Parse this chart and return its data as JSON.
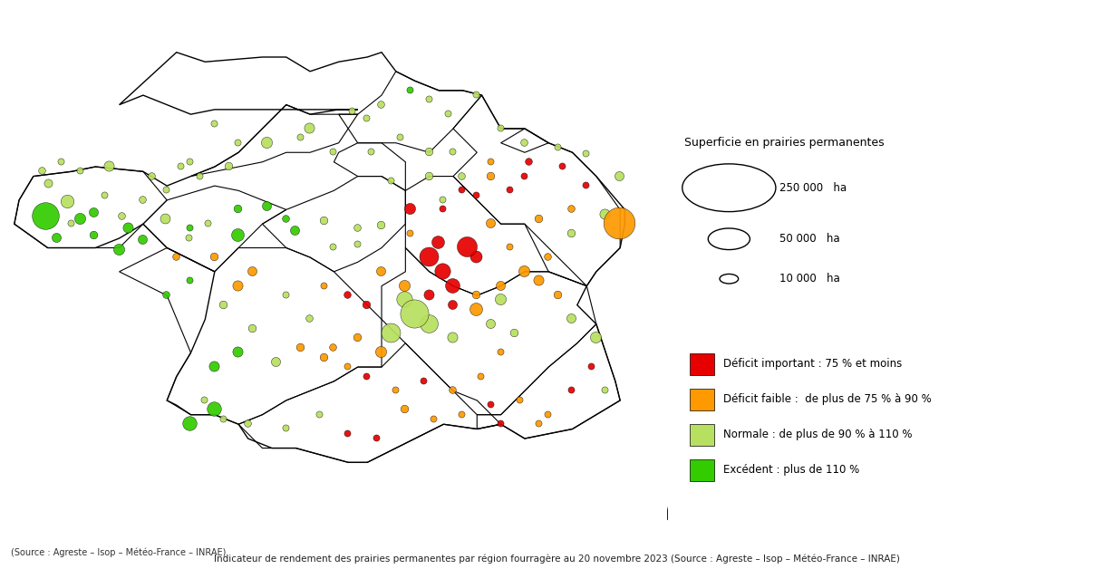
{
  "title": "Indicateur de rendement des prairies permanentes par région fourragère au 20 novembre 2023\n(Source : Agreste – Isop – Météo-France – INRAE)",
  "legend_size_title": "Superficie en prairies permanentes",
  "legend_sizes": [
    250000,
    50000,
    10000
  ],
  "legend_size_labels": [
    "250 000   ha",
    "50 000   ha",
    "10 000   ha"
  ],
  "color_legend": [
    {
      "color": "#e60000",
      "label": "Déficit important : 75 % et moins"
    },
    {
      "color": "#ff9900",
      "label": "Déficit faible :  de plus de 75 % à 90 %"
    },
    {
      "color": "#b8e060",
      "label": "Normale : de plus de 90 % à 110 %"
    },
    {
      "color": "#33cc00",
      "label": "Excédent : plus de 110 %"
    }
  ],
  "bubbles": [
    {
      "lon": -4.5,
      "lat": 48.35,
      "size": 18000,
      "color": "#b8e060"
    },
    {
      "lon": -4.1,
      "lat": 47.98,
      "size": 45000,
      "color": "#b8e060"
    },
    {
      "lon": -3.55,
      "lat": 47.75,
      "size": 22000,
      "color": "#33cc00"
    },
    {
      "lon": -2.95,
      "lat": 47.68,
      "size": 13000,
      "color": "#b8e060"
    },
    {
      "lon": -2.05,
      "lat": 47.62,
      "size": 26000,
      "color": "#b8e060"
    },
    {
      "lon": -1.55,
      "lat": 47.22,
      "size": 11000,
      "color": "#b8e060"
    },
    {
      "lon": -1.15,
      "lat": 47.52,
      "size": 11000,
      "color": "#b8e060"
    },
    {
      "lon": -4.55,
      "lat": 47.68,
      "size": 190000,
      "color": "#33cc00"
    },
    {
      "lon": -3.55,
      "lat": 47.28,
      "size": 16000,
      "color": "#33cc00"
    },
    {
      "lon": -3.02,
      "lat": 46.98,
      "size": 32000,
      "color": "#33cc00"
    },
    {
      "lon": -2.52,
      "lat": 47.18,
      "size": 22000,
      "color": "#33cc00"
    },
    {
      "lon": -1.82,
      "lat": 46.82,
      "size": 13000,
      "color": "#ff9900"
    },
    {
      "lon": -1.02,
      "lat": 46.82,
      "size": 16000,
      "color": "#ff9900"
    },
    {
      "lon": -0.52,
      "lat": 47.28,
      "size": 42000,
      "color": "#33cc00"
    },
    {
      "lon": 0.08,
      "lat": 47.88,
      "size": 22000,
      "color": "#33cc00"
    },
    {
      "lon": 0.68,
      "lat": 47.38,
      "size": 22000,
      "color": "#33cc00"
    },
    {
      "lon": 1.28,
      "lat": 47.58,
      "size": 16000,
      "color": "#b8e060"
    },
    {
      "lon": 1.98,
      "lat": 47.08,
      "size": 11000,
      "color": "#b8e060"
    },
    {
      "lon": 2.48,
      "lat": 47.48,
      "size": 16000,
      "color": "#b8e060"
    },
    {
      "lon": -4.62,
      "lat": 48.62,
      "size": 13000,
      "color": "#b8e060"
    },
    {
      "lon": -4.22,
      "lat": 48.82,
      "size": 11000,
      "color": "#b8e060"
    },
    {
      "lon": -3.82,
      "lat": 48.62,
      "size": 11000,
      "color": "#b8e060"
    },
    {
      "lon": -3.22,
      "lat": 48.72,
      "size": 27000,
      "color": "#b8e060"
    },
    {
      "lon": -2.32,
      "lat": 48.52,
      "size": 13000,
      "color": "#b8e060"
    },
    {
      "lon": -1.72,
      "lat": 48.72,
      "size": 11000,
      "color": "#b8e060"
    },
    {
      "lon": -1.32,
      "lat": 48.52,
      "size": 11000,
      "color": "#b8e060"
    },
    {
      "lon": -0.72,
      "lat": 48.72,
      "size": 16000,
      "color": "#b8e060"
    },
    {
      "lon": 0.08,
      "lat": 49.22,
      "size": 32000,
      "color": "#b8e060"
    },
    {
      "lon": 0.98,
      "lat": 49.52,
      "size": 27000,
      "color": "#b8e060"
    },
    {
      "lon": 1.88,
      "lat": 49.88,
      "size": 11000,
      "color": "#b8e060"
    },
    {
      "lon": 2.48,
      "lat": 50.02,
      "size": 13000,
      "color": "#b8e060"
    },
    {
      "lon": 3.08,
      "lat": 50.32,
      "size": 11000,
      "color": "#33cc00"
    },
    {
      "lon": 3.48,
      "lat": 50.12,
      "size": 11000,
      "color": "#b8e060"
    },
    {
      "lon": 3.88,
      "lat": 49.82,
      "size": 11000,
      "color": "#b8e060"
    },
    {
      "lon": 4.48,
      "lat": 50.22,
      "size": 11000,
      "color": "#b8e060"
    },
    {
      "lon": 4.98,
      "lat": 49.52,
      "size": 11000,
      "color": "#b8e060"
    },
    {
      "lon": 5.48,
      "lat": 49.22,
      "size": 13000,
      "color": "#b8e060"
    },
    {
      "lon": 6.18,
      "lat": 49.12,
      "size": 11000,
      "color": "#b8e060"
    },
    {
      "lon": 6.78,
      "lat": 48.98,
      "size": 11000,
      "color": "#b8e060"
    },
    {
      "lon": 7.48,
      "lat": 48.52,
      "size": 22000,
      "color": "#b8e060"
    },
    {
      "lon": 7.18,
      "lat": 47.72,
      "size": 27000,
      "color": "#b8e060"
    },
    {
      "lon": 6.48,
      "lat": 47.32,
      "size": 16000,
      "color": "#b8e060"
    },
    {
      "lon": 5.98,
      "lat": 46.82,
      "size": 13000,
      "color": "#ff9900"
    },
    {
      "lon": 5.48,
      "lat": 46.52,
      "size": 32000,
      "color": "#ff9900"
    },
    {
      "lon": 4.98,
      "lat": 46.22,
      "size": 22000,
      "color": "#ff9900"
    },
    {
      "lon": 4.48,
      "lat": 46.02,
      "size": 16000,
      "color": "#ff9900"
    },
    {
      "lon": 3.98,
      "lat": 45.82,
      "size": 22000,
      "color": "#e60000"
    },
    {
      "lon": 3.48,
      "lat": 46.02,
      "size": 27000,
      "color": "#e60000"
    },
    {
      "lon": 2.98,
      "lat": 46.22,
      "size": 32000,
      "color": "#ff9900"
    },
    {
      "lon": 2.48,
      "lat": 46.52,
      "size": 22000,
      "color": "#ff9900"
    },
    {
      "lon": 2.18,
      "lat": 45.82,
      "size": 16000,
      "color": "#e60000"
    },
    {
      "lon": 1.78,
      "lat": 46.02,
      "size": 13000,
      "color": "#e60000"
    },
    {
      "lon": 1.28,
      "lat": 46.22,
      "size": 11000,
      "color": "#ff9900"
    },
    {
      "lon": 3.78,
      "lat": 46.52,
      "size": 65000,
      "color": "#e60000"
    },
    {
      "lon": 3.48,
      "lat": 46.82,
      "size": 95000,
      "color": "#e60000"
    },
    {
      "lon": 3.98,
      "lat": 46.22,
      "size": 55000,
      "color": "#e60000"
    },
    {
      "lon": 4.48,
      "lat": 45.72,
      "size": 42000,
      "color": "#ff9900"
    },
    {
      "lon": 4.78,
      "lat": 45.42,
      "size": 22000,
      "color": "#b8e060"
    },
    {
      "lon": 5.28,
      "lat": 45.22,
      "size": 16000,
      "color": "#b8e060"
    },
    {
      "lon": 4.98,
      "lat": 44.82,
      "size": 11000,
      "color": "#ff9900"
    },
    {
      "lon": 4.58,
      "lat": 44.32,
      "size": 11000,
      "color": "#ff9900"
    },
    {
      "lon": 3.98,
      "lat": 44.02,
      "size": 13000,
      "color": "#ff9900"
    },
    {
      "lon": 3.38,
      "lat": 44.22,
      "size": 11000,
      "color": "#e60000"
    },
    {
      "lon": 2.78,
      "lat": 44.02,
      "size": 11000,
      "color": "#ff9900"
    },
    {
      "lon": 2.18,
      "lat": 44.32,
      "size": 11000,
      "color": "#e60000"
    },
    {
      "lon": 1.78,
      "lat": 44.52,
      "size": 11000,
      "color": "#ff9900"
    },
    {
      "lon": 1.28,
      "lat": 44.72,
      "size": 16000,
      "color": "#ff9900"
    },
    {
      "lon": 0.78,
      "lat": 44.92,
      "size": 16000,
      "color": "#ff9900"
    },
    {
      "lon": 0.28,
      "lat": 44.62,
      "size": 22000,
      "color": "#b8e060"
    },
    {
      "lon": -0.52,
      "lat": 44.82,
      "size": 27000,
      "color": "#33cc00"
    },
    {
      "lon": -1.02,
      "lat": 44.52,
      "size": 27000,
      "color": "#33cc00"
    },
    {
      "lon": -1.22,
      "lat": 43.82,
      "size": 11000,
      "color": "#b8e060"
    },
    {
      "lon": -0.82,
      "lat": 43.42,
      "size": 11000,
      "color": "#b8e060"
    },
    {
      "lon": -0.32,
      "lat": 43.32,
      "size": 13000,
      "color": "#b8e060"
    },
    {
      "lon": 0.48,
      "lat": 43.22,
      "size": 11000,
      "color": "#b8e060"
    },
    {
      "lon": 1.18,
      "lat": 43.52,
      "size": 11000,
      "color": "#b8e060"
    },
    {
      "lon": 1.78,
      "lat": 43.12,
      "size": 11000,
      "color": "#e60000"
    },
    {
      "lon": 2.38,
      "lat": 43.02,
      "size": 11000,
      "color": "#e60000"
    },
    {
      "lon": 2.98,
      "lat": 43.62,
      "size": 16000,
      "color": "#ff9900"
    },
    {
      "lon": 3.58,
      "lat": 43.42,
      "size": 11000,
      "color": "#ff9900"
    },
    {
      "lon": 4.18,
      "lat": 43.52,
      "size": 11000,
      "color": "#ff9900"
    },
    {
      "lon": 4.78,
      "lat": 43.72,
      "size": 11000,
      "color": "#e60000"
    },
    {
      "lon": 5.38,
      "lat": 43.82,
      "size": 11000,
      "color": "#ff9900"
    },
    {
      "lon": 5.98,
      "lat": 43.52,
      "size": 11000,
      "color": "#ff9900"
    },
    {
      "lon": 6.48,
      "lat": 44.02,
      "size": 11000,
      "color": "#e60000"
    },
    {
      "lon": 6.88,
      "lat": 44.52,
      "size": 11000,
      "color": "#e60000"
    },
    {
      "lon": 7.18,
      "lat": 44.02,
      "size": 11000,
      "color": "#b8e060"
    },
    {
      "lon": 6.98,
      "lat": 45.12,
      "size": 32000,
      "color": "#b8e060"
    },
    {
      "lon": 6.48,
      "lat": 45.52,
      "size": 22000,
      "color": "#b8e060"
    },
    {
      "lon": 6.18,
      "lat": 46.02,
      "size": 16000,
      "color": "#ff9900"
    },
    {
      "lon": 3.08,
      "lat": 47.32,
      "size": 11000,
      "color": "#ff9900"
    },
    {
      "lon": 3.78,
      "lat": 47.82,
      "size": 11000,
      "color": "#e60000"
    },
    {
      "lon": 4.18,
      "lat": 48.22,
      "size": 11000,
      "color": "#e60000"
    },
    {
      "lon": 4.78,
      "lat": 48.52,
      "size": 16000,
      "color": "#ff9900"
    },
    {
      "lon": 5.18,
      "lat": 48.22,
      "size": 11000,
      "color": "#e60000"
    },
    {
      "lon": 5.58,
      "lat": 48.82,
      "size": 13000,
      "color": "#e60000"
    },
    {
      "lon": 3.98,
      "lat": 49.02,
      "size": 11000,
      "color": "#b8e060"
    },
    {
      "lon": 2.68,
      "lat": 48.42,
      "size": 11000,
      "color": "#b8e060"
    },
    {
      "lon": 3.48,
      "lat": 49.02,
      "size": 16000,
      "color": "#b8e060"
    },
    {
      "lon": 4.78,
      "lat": 47.52,
      "size": 22000,
      "color": "#ff9900"
    },
    {
      "lon": 3.08,
      "lat": 47.82,
      "size": 32000,
      "color": "#e60000"
    },
    {
      "lon": 3.68,
      "lat": 47.12,
      "size": 42000,
      "color": "#e60000"
    },
    {
      "lon": 4.28,
      "lat": 47.02,
      "size": 105000,
      "color": "#e60000"
    },
    {
      "lon": 3.18,
      "lat": 45.62,
      "size": 210000,
      "color": "#b8e060"
    },
    {
      "lon": 2.68,
      "lat": 45.22,
      "size": 95000,
      "color": "#b8e060"
    },
    {
      "lon": 2.48,
      "lat": 44.82,
      "size": 32000,
      "color": "#ff9900"
    },
    {
      "lon": 7.48,
      "lat": 47.52,
      "size": 260000,
      "color": "#ff9900"
    },
    {
      "lon": 6.78,
      "lat": 48.32,
      "size": 11000,
      "color": "#e60000"
    },
    {
      "lon": 5.78,
      "lat": 47.62,
      "size": 16000,
      "color": "#ff9900"
    },
    {
      "lon": 5.18,
      "lat": 47.02,
      "size": 11000,
      "color": "#ff9900"
    },
    {
      "lon": 2.28,
      "lat": 49.02,
      "size": 11000,
      "color": "#b8e060"
    },
    {
      "lon": 1.48,
      "lat": 49.02,
      "size": 11000,
      "color": "#b8e060"
    },
    {
      "lon": 0.78,
      "lat": 49.32,
      "size": 11000,
      "color": "#b8e060"
    },
    {
      "lon": -0.52,
      "lat": 49.22,
      "size": 11000,
      "color": "#b8e060"
    },
    {
      "lon": -1.02,
      "lat": 49.62,
      "size": 11000,
      "color": "#b8e060"
    },
    {
      "lon": -1.52,
      "lat": 48.82,
      "size": 11000,
      "color": "#b8e060"
    },
    {
      "lon": -2.02,
      "lat": 48.22,
      "size": 11000,
      "color": "#b8e060"
    },
    {
      "lon": -2.52,
      "lat": 48.02,
      "size": 13000,
      "color": "#b8e060"
    },
    {
      "lon": 0.48,
      "lat": 46.02,
      "size": 11000,
      "color": "#b8e060"
    },
    {
      "lon": 0.98,
      "lat": 45.52,
      "size": 13000,
      "color": "#b8e060"
    },
    {
      "lon": -0.22,
      "lat": 45.32,
      "size": 16000,
      "color": "#b8e060"
    },
    {
      "lon": -0.82,
      "lat": 45.82,
      "size": 16000,
      "color": "#b8e060"
    },
    {
      "lon": -0.22,
      "lat": 46.52,
      "size": 22000,
      "color": "#ff9900"
    },
    {
      "lon": -0.52,
      "lat": 46.22,
      "size": 27000,
      "color": "#ff9900"
    },
    {
      "lon": 4.48,
      "lat": 46.82,
      "size": 37000,
      "color": "#e60000"
    },
    {
      "lon": 5.78,
      "lat": 46.32,
      "size": 27000,
      "color": "#ff9900"
    },
    {
      "lon": 4.98,
      "lat": 45.92,
      "size": 32000,
      "color": "#b8e060"
    },
    {
      "lon": 3.98,
      "lat": 45.12,
      "size": 27000,
      "color": "#b8e060"
    },
    {
      "lon": 3.48,
      "lat": 45.42,
      "size": 85000,
      "color": "#b8e060"
    },
    {
      "lon": 2.98,
      "lat": 45.92,
      "size": 65000,
      "color": "#b8e060"
    },
    {
      "lon": 1.98,
      "lat": 45.12,
      "size": 16000,
      "color": "#ff9900"
    },
    {
      "lon": 1.48,
      "lat": 44.92,
      "size": 13000,
      "color": "#ff9900"
    },
    {
      "lon": 6.28,
      "lat": 48.72,
      "size": 11000,
      "color": "#e60000"
    },
    {
      "lon": 6.48,
      "lat": 47.82,
      "size": 13000,
      "color": "#ff9900"
    },
    {
      "lon": 3.78,
      "lat": 48.02,
      "size": 11000,
      "color": "#b8e060"
    },
    {
      "lon": 1.98,
      "lat": 47.42,
      "size": 13000,
      "color": "#b8e060"
    },
    {
      "lon": 1.48,
      "lat": 47.02,
      "size": 11000,
      "color": "#b8e060"
    },
    {
      "lon": 0.48,
      "lat": 47.62,
      "size": 13000,
      "color": "#33cc00"
    },
    {
      "lon": -0.52,
      "lat": 47.82,
      "size": 16000,
      "color": "#33cc00"
    },
    {
      "lon": -1.52,
      "lat": 47.42,
      "size": 11000,
      "color": "#33cc00"
    },
    {
      "lon": -2.82,
      "lat": 47.42,
      "size": 27000,
      "color": "#33cc00"
    },
    {
      "lon": -3.82,
      "lat": 47.62,
      "size": 32000,
      "color": "#33cc00"
    },
    {
      "lon": -4.32,
      "lat": 47.22,
      "size": 22000,
      "color": "#33cc00"
    },
    {
      "lon": -4.02,
      "lat": 47.52,
      "size": 11000,
      "color": "#b8e060"
    },
    {
      "lon": -3.32,
      "lat": 48.12,
      "size": 11000,
      "color": "#b8e060"
    },
    {
      "lon": -1.52,
      "lat": 46.32,
      "size": 11000,
      "color": "#33cc00"
    },
    {
      "lon": -2.02,
      "lat": 46.02,
      "size": 13000,
      "color": "#33cc00"
    },
    {
      "lon": -1.02,
      "lat": 43.62,
      "size": 52000,
      "color": "#33cc00"
    },
    {
      "lon": -1.52,
      "lat": 43.32,
      "size": 52000,
      "color": "#33cc00"
    },
    {
      "lon": 4.78,
      "lat": 48.82,
      "size": 11000,
      "color": "#ff9900"
    },
    {
      "lon": 5.48,
      "lat": 48.52,
      "size": 11000,
      "color": "#e60000"
    },
    {
      "lon": 4.98,
      "lat": 43.32,
      "size": 11000,
      "color": "#e60000"
    },
    {
      "lon": 5.78,
      "lat": 43.32,
      "size": 11000,
      "color": "#ff9900"
    },
    {
      "lon": 4.48,
      "lat": 48.12,
      "size": 11000,
      "color": "#e60000"
    },
    {
      "lon": 4.18,
      "lat": 48.52,
      "size": 13000,
      "color": "#b8e060"
    },
    {
      "lon": 3.48,
      "lat": 48.52,
      "size": 16000,
      "color": "#b8e060"
    },
    {
      "lon": 2.88,
      "lat": 49.32,
      "size": 11000,
      "color": "#b8e060"
    },
    {
      "lon": 2.18,
      "lat": 49.72,
      "size": 11000,
      "color": "#b8e060"
    }
  ],
  "background_color": "white",
  "map_xlim": [
    -5.5,
    8.5
  ],
  "map_ylim": [
    41.2,
    51.5
  ],
  "size_ref": 250000,
  "size_ref_points": 600
}
